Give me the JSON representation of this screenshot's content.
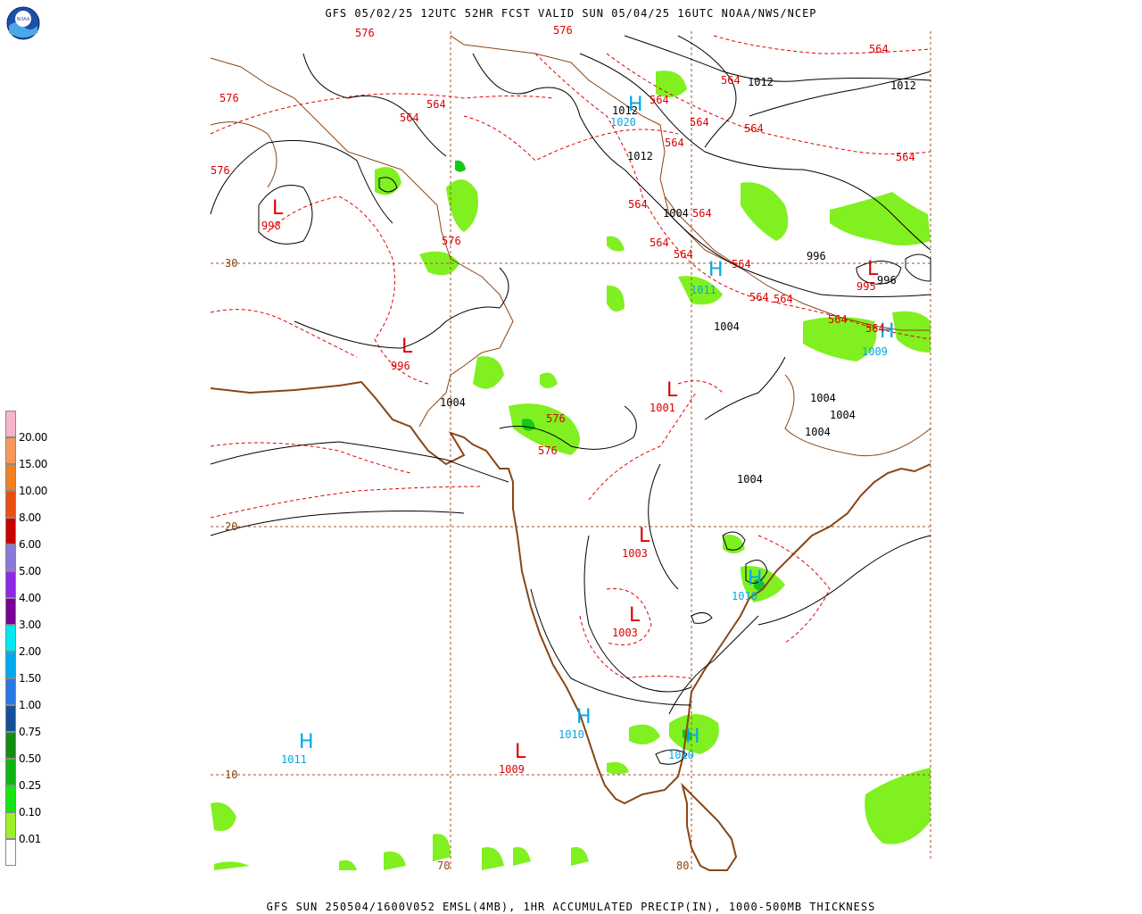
{
  "header": {
    "title": "GFS 05/02/25 12UTC 52HR FCST VALID SUN 05/04/25 16UTC NOAA/NWS/NCEP"
  },
  "footer": {
    "title": "GFS SUN 250504/1600V052 EMSL(4MB), 1HR ACCUMULATED PRECIP(IN), 1000-500MB THICKNESS"
  },
  "logo": {
    "text": "NOAA",
    "icon": "noaa-logo-icon"
  },
  "legend": {
    "items": [
      {
        "label": "20.00",
        "color": "#f6b4c8"
      },
      {
        "label": "15.00",
        "color": "#f59a5a"
      },
      {
        "label": "10.00",
        "color": "#f08020"
      },
      {
        "label": "8.00",
        "color": "#e85010"
      },
      {
        "label": "6.00",
        "color": "#c80000"
      },
      {
        "label": "5.00",
        "color": "#8c78d8"
      },
      {
        "label": "4.00",
        "color": "#8c28e6"
      },
      {
        "label": "3.00",
        "color": "#780096"
      },
      {
        "label": "2.00",
        "color": "#00e8f0"
      },
      {
        "label": "1.50",
        "color": "#00aaf0"
      },
      {
        "label": "1.00",
        "color": "#2878e6"
      },
      {
        "label": "0.75",
        "color": "#145096"
      },
      {
        "label": "0.50",
        "color": "#148c14"
      },
      {
        "label": "0.25",
        "color": "#10b410"
      },
      {
        "label": "0.10",
        "color": "#14e614"
      },
      {
        "label": "0.01",
        "color": "#9cf028"
      },
      {
        "label": "",
        "color": "#ffffff"
      }
    ]
  },
  "grid": {
    "lat_labels": [
      "30",
      "20",
      "10"
    ],
    "lon_labels": [
      "70",
      "80"
    ]
  },
  "pressure_centers": {
    "lows": [
      {
        "symbol": "L",
        "value": "998"
      },
      {
        "symbol": "L",
        "value": "996"
      },
      {
        "symbol": "L",
        "value": "1001"
      },
      {
        "symbol": "L",
        "value": "1003"
      },
      {
        "symbol": "L",
        "value": "1003"
      },
      {
        "symbol": "L",
        "value": "1009"
      },
      {
        "symbol": "L",
        "value": "995"
      }
    ],
    "highs": [
      {
        "symbol": "H",
        "value": "1020"
      },
      {
        "symbol": "H",
        "value": "1011"
      },
      {
        "symbol": "H",
        "value": "1009"
      },
      {
        "symbol": "H",
        "value": "1010"
      },
      {
        "symbol": "H",
        "value": "1010"
      },
      {
        "symbol": "H",
        "value": "1010"
      },
      {
        "symbol": "H",
        "value": "1011"
      }
    ]
  },
  "isobar_labels": [
    "1012",
    "1012",
    "1012",
    "1012",
    "1004",
    "996",
    "996",
    "1004",
    "1004",
    "1004",
    "1004",
    "1004",
    "1004"
  ],
  "thickness_labels": [
    "576",
    "576",
    "576",
    "576",
    "576",
    "576",
    "576",
    "564",
    "564",
    "564",
    "564",
    "564",
    "564",
    "564",
    "564",
    "564",
    "564",
    "564",
    "564",
    "564",
    "564",
    "564",
    "564",
    "564",
    "564"
  ],
  "colors": {
    "isobar": "#000000",
    "thickness": "#e00000",
    "low": "#dd0000",
    "high": "#00a8e8",
    "coast": "#8b4513",
    "precip": "#80f020"
  }
}
